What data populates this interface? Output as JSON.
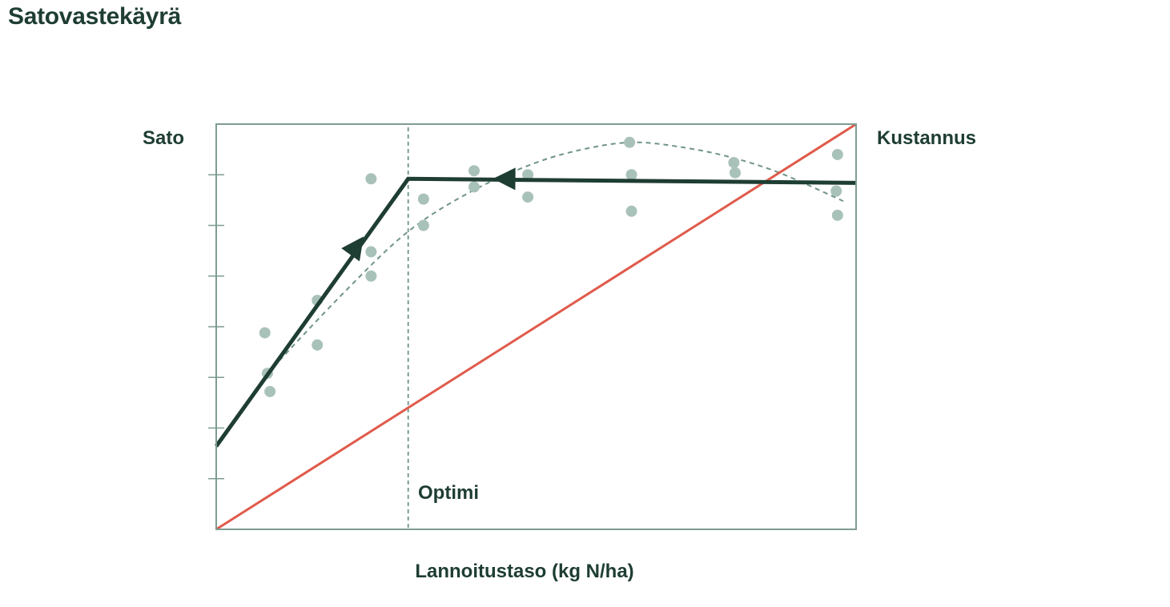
{
  "title": "Satovastekäyrä",
  "colors": {
    "text": "#1e3d33",
    "frame": "#7f9c93",
    "points": "#a9c2b9",
    "fit_curve": "#6f9488",
    "response_line": "#1e3d33",
    "cost_line": "#e05a4b"
  },
  "chart_data": {
    "type": "scatter",
    "title": "Satovastekäyrä",
    "xlabel": "Lannoitustaso (kg N/ha)",
    "ylabel": "Sato",
    "y2label": "Kustannus",
    "xlim": [
      0,
      100
    ],
    "ylim": [
      0,
      100
    ],
    "y_ticks": [
      12.5,
      25,
      37.5,
      50,
      62.5,
      75,
      87.5
    ],
    "tick_labels_shown": false,
    "grid": false,
    "annotation": {
      "text": "Optimi",
      "x": 30
    },
    "series": [
      {
        "name": "observations",
        "kind": "points",
        "points": [
          [
            7.6,
            48.5
          ],
          [
            8.0,
            38.5
          ],
          [
            8.4,
            34.0
          ],
          [
            15.8,
            56.5
          ],
          [
            15.8,
            45.5
          ],
          [
            24.2,
            86.5
          ],
          [
            24.2,
            68.5
          ],
          [
            24.2,
            62.5
          ],
          [
            32.4,
            81.5
          ],
          [
            32.4,
            75.0
          ],
          [
            40.3,
            88.5
          ],
          [
            40.3,
            84.5
          ],
          [
            48.7,
            87.5
          ],
          [
            48.7,
            82.0
          ],
          [
            64.6,
            95.5
          ],
          [
            64.9,
            87.5
          ],
          [
            64.9,
            78.5
          ],
          [
            80.9,
            90.5
          ],
          [
            81.1,
            88.0
          ],
          [
            97.1,
            92.5
          ],
          [
            96.9,
            83.5
          ],
          [
            97.1,
            77.5
          ]
        ]
      },
      {
        "name": "fitted curve",
        "kind": "dashed",
        "points": [
          [
            8.0,
            38.5
          ],
          [
            20.0,
            58.5
          ],
          [
            30.0,
            73.5
          ],
          [
            40.0,
            83.5
          ],
          [
            50.0,
            90.5
          ],
          [
            58.0,
            94.0
          ],
          [
            65.0,
            95.5
          ],
          [
            72.0,
            94.5
          ],
          [
            80.0,
            92.0
          ],
          [
            88.0,
            88.0
          ],
          [
            98.0,
            81.0
          ]
        ]
      },
      {
        "name": "response plateau",
        "kind": "line-arrows",
        "points": [
          [
            0,
            20.5
          ],
          [
            30,
            86.5
          ],
          [
            100,
            85.5
          ]
        ],
        "arrows": [
          [
            22.0,
            70.0
          ],
          [
            45.0,
            86.5
          ]
        ]
      },
      {
        "name": "Kustannus",
        "kind": "line",
        "points": [
          [
            0,
            0
          ],
          [
            100,
            100
          ]
        ]
      }
    ]
  }
}
